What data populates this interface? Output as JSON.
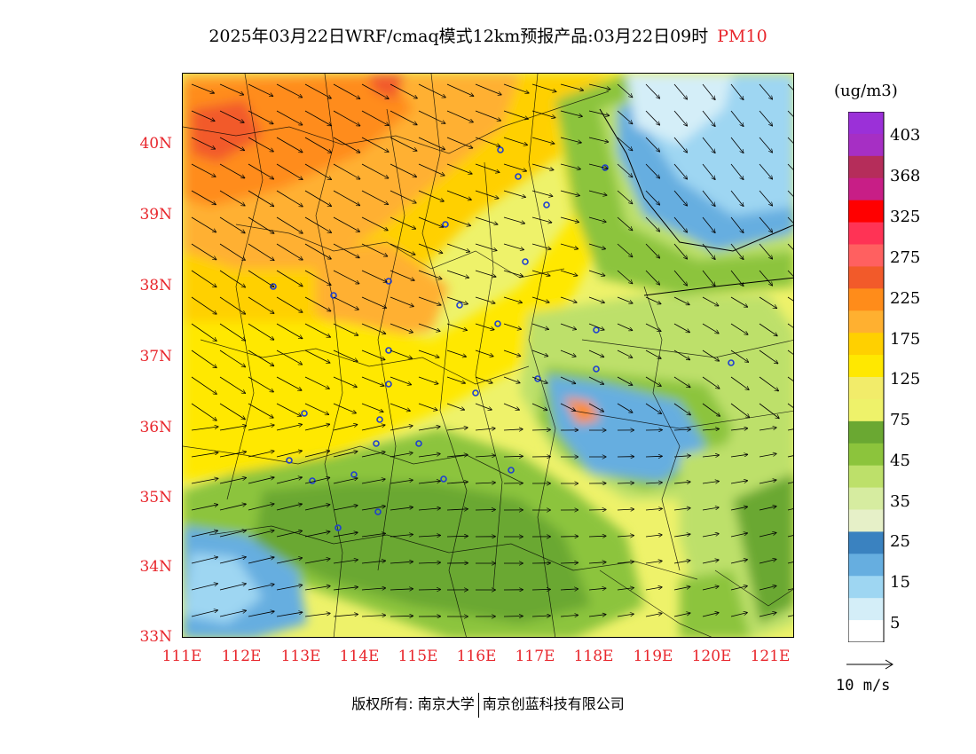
{
  "title": {
    "main": "2025年03月22日WRF/cmaq模式12km预报产品:03月22日09时",
    "variable": "PM10"
  },
  "axes": {
    "lat_labels": [
      "40N",
      "39N",
      "38N",
      "37N",
      "36N",
      "35N",
      "34N",
      "33N"
    ],
    "lon_labels": [
      "111E",
      "112E",
      "113E",
      "114E",
      "115E",
      "116E",
      "117E",
      "118E",
      "119E",
      "120E",
      "121E"
    ]
  },
  "colorbar": {
    "units": "(ug/m3)",
    "labels": [
      "403",
      "368",
      "325",
      "275",
      "225",
      "175",
      "125",
      "75",
      "45",
      "35",
      "25",
      "15",
      "5"
    ],
    "colors": [
      "#9b30d8",
      "#a62fc4",
      "#b52d5a",
      "#c81e86",
      "#ff0000",
      "#ff3355",
      "#ff6060",
      "#f25a2a",
      "#ff8c1a",
      "#ffb030",
      "#ffd000",
      "#ffe800",
      "#f2ec6a",
      "#eef26a",
      "#6aa832",
      "#8cc43c",
      "#bde06a",
      "#d6eca0",
      "#e6f0c8",
      "#3a82c0",
      "#66aee0",
      "#9ed6f2",
      "#d4eef8",
      "#ffffff"
    ]
  },
  "vector_reference": "10 m/s",
  "copyright": {
    "left": "版权所有: 南京大学",
    "right": "南京创蓝科技有限公司"
  }
}
